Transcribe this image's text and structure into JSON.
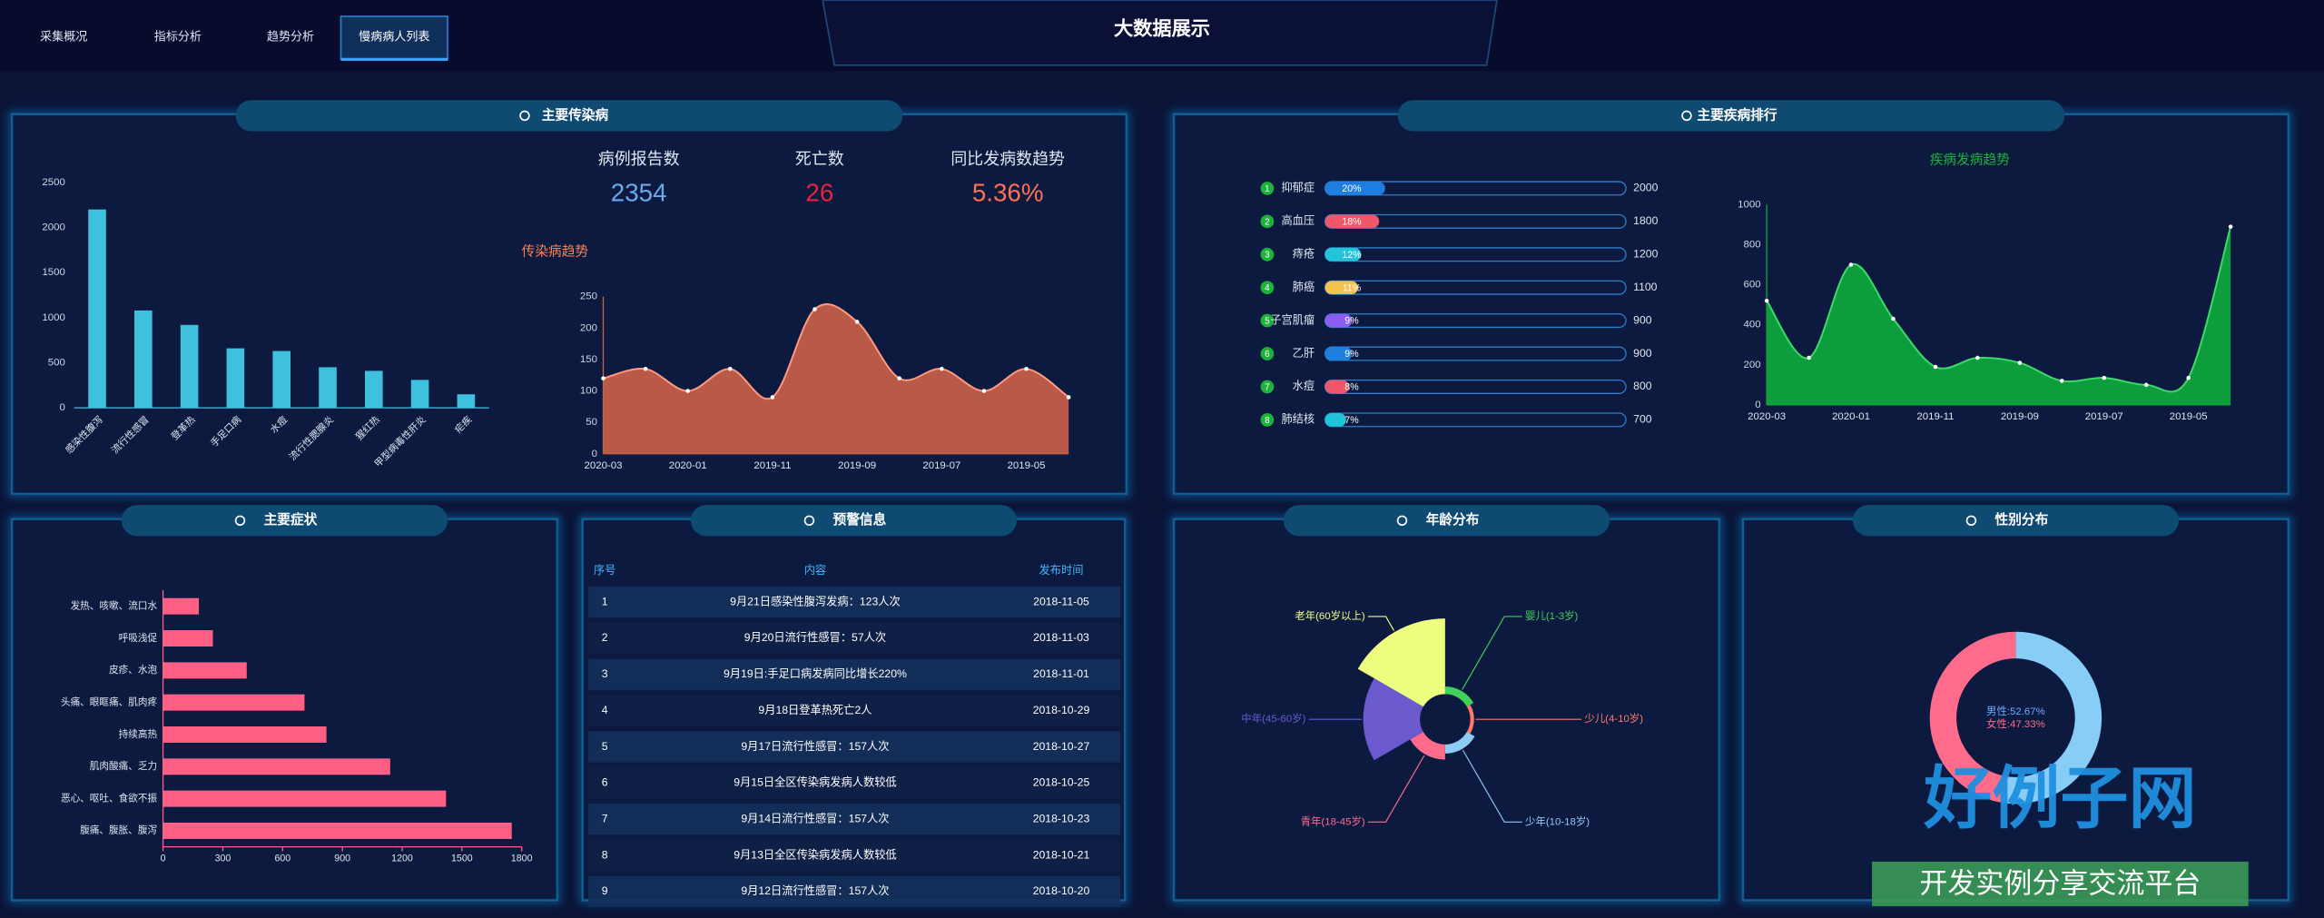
{
  "nav": [
    "采集概况",
    "指标分析",
    "趋势分析",
    "慢病病人列表"
  ],
  "title": "大数据展示",
  "panels": [
    "主要传染病",
    "主要疾病排行",
    "主要症状",
    "预警信息",
    "年龄分布",
    "性别分布"
  ],
  "stats": [
    {
      "label": "病例报告数",
      "value": 2354,
      "color": "#6aa8f0"
    },
    {
      "label": "死亡数",
      "value": 26,
      "color": "#e8223c"
    },
    {
      "label": "同比发病数趋势",
      "value": 5.36,
      "value_label": "5.36%",
      "color": "#ff7052"
    }
  ],
  "chart_data": [
    {
      "type": "bar",
      "categories": [
        "感染性腹泻",
        "流行性感冒",
        "登革热",
        "手足口病",
        "水痘",
        "流行性腮腺炎",
        "猩红热",
        "甲型病毒性肝炎",
        "疟疾"
      ],
      "values": [
        2200,
        1080,
        920,
        660,
        630,
        450,
        410,
        310,
        150
      ],
      "color": "#3fc1de",
      "ylim": [
        0,
        2500
      ],
      "yticks": [
        0,
        500,
        1000,
        1500,
        2000,
        2500
      ]
    },
    {
      "type": "area",
      "title": "传染病趋势",
      "categories": [
        "2020-03",
        null,
        "2020-01",
        null,
        "2019-11",
        null,
        "2019-09",
        null,
        "2019-07",
        null,
        "2019-05",
        null
      ],
      "values": [
        120,
        135,
        100,
        135,
        90,
        230,
        210,
        120,
        135,
        100,
        135,
        90
      ],
      "color": "#c8604a",
      "line_color": "#ff9a80",
      "ylim": [
        0,
        250
      ],
      "yticks": [
        0,
        50,
        100,
        150,
        200,
        250
      ]
    },
    {
      "type": "progress",
      "categories": [
        "抑郁症",
        "高血压",
        "痔疮",
        "肺癌",
        "子宫肌瘤",
        "乙肝",
        "水痘",
        "肺结核"
      ],
      "ranks": [
        1,
        2,
        3,
        4,
        5,
        6,
        7,
        8
      ],
      "values": [
        20,
        18,
        12,
        11,
        9,
        9,
        8,
        7
      ],
      "value_labels": [
        "20%",
        "18%",
        "12%",
        "11%",
        "9%",
        "9%",
        "8%",
        "7%"
      ],
      "totals": [
        2000,
        1800,
        1200,
        1100,
        900,
        900,
        800,
        700
      ],
      "colors": [
        "#1e7ee0",
        "#f0566a",
        "#21c4d8",
        "#f2c14e",
        "#8a5cf0",
        "#1e7ee0",
        "#f0566a",
        "#21c4d8"
      ],
      "xlim": [
        0,
        100
      ]
    },
    {
      "type": "area",
      "title": "疾病发病趋势",
      "categories": [
        "2020-03",
        null,
        "2020-01",
        null,
        "2019-11",
        null,
        "2019-09",
        null,
        "2019-07",
        null,
        "2019-05",
        null
      ],
      "values": [
        520,
        235,
        700,
        430,
        190,
        235,
        210,
        120,
        135,
        100,
        135,
        890
      ],
      "color": "#0ea83c",
      "line_color": "#3ddc6a",
      "ylim": [
        0,
        1000
      ],
      "yticks": [
        0,
        200,
        400,
        600,
        800,
        1000
      ]
    },
    {
      "type": "hbar",
      "categories": [
        "发热、咳嗽、流口水",
        "呼吸浅促",
        "皮疹、水泡",
        "头痛、眼眶痛、肌肉疼",
        "持续高热",
        "肌肉酸痛、乏力",
        "恶心、呕吐、食欲不振",
        "腹痛、腹胀、腹泻"
      ],
      "values": [
        180,
        250,
        420,
        710,
        820,
        1140,
        1420,
        1750
      ],
      "color": "#ff5f85",
      "xlim": [
        0,
        1800
      ],
      "xticks": [
        0,
        300,
        600,
        900,
        1200,
        1500,
        1800
      ]
    },
    {
      "type": "rose",
      "categories": [
        "婴儿(1-3岁)",
        "少儿(4-10岁)",
        "少年(10-18岁)",
        "青年(18-45岁)",
        "中年(45-60岁)",
        "老年(60岁以上)"
      ],
      "values": [
        10,
        5,
        12,
        20,
        75,
        100
      ],
      "colors": [
        "#3fd15a",
        "#ff7a6b",
        "#8ecbf5",
        "#ff6b8b",
        "#6a5acd",
        "#eeff80"
      ]
    },
    {
      "type": "donut",
      "categories": [
        "男性",
        "女性"
      ],
      "values": [
        52.67,
        47.33
      ],
      "value_labels": [
        "男性:52.67%",
        "女性:47.33%"
      ],
      "colors": [
        "#88cdf6",
        "#ff6b8b"
      ]
    }
  ],
  "warning_table": {
    "headers": [
      "序号",
      "内容",
      "发布时间"
    ],
    "rows": [
      [
        1,
        "9月21日感染性腹泻发病：123人次",
        "2018-11-05"
      ],
      [
        2,
        "9月20日流行性感冒：57人次",
        "2018-11-03"
      ],
      [
        3,
        "9月19日:手足口病发病同比增长220%",
        "2018-11-01"
      ],
      [
        4,
        "9月18日登革热死亡2人",
        "2018-10-29"
      ],
      [
        5,
        "9月17日流行性感冒：157人次",
        "2018-10-27"
      ],
      [
        6,
        "9月15日全区传染病发病人数较低",
        "2018-10-25"
      ],
      [
        7,
        "9月14日流行性感冒：157人次",
        "2018-10-23"
      ],
      [
        8,
        "9月13日全区传染病发病人数较低",
        "2018-10-21"
      ],
      [
        9,
        "9月12日流行性感冒：157人次",
        "2018-10-20"
      ]
    ]
  },
  "watermark": {
    "title": "好例子网",
    "subtitle": "开发实例分享交流平台"
  }
}
